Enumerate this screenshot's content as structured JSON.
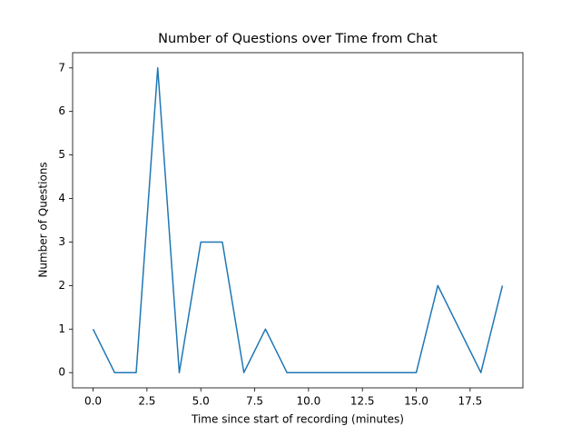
{
  "chart_data": {
    "type": "line",
    "title": "Number of Questions over Time from Chat",
    "x_label": "Time since start of recording (minutes)",
    "y_label": "Number of Questions",
    "x": [
      0,
      1,
      2,
      3,
      4,
      5,
      6,
      7,
      8,
      9,
      10,
      11,
      12,
      13,
      14,
      15,
      16,
      17,
      18,
      19
    ],
    "series": [
      {
        "color": "#1f77b4",
        "values": [
          1,
          0,
          0,
          7,
          0,
          3,
          3,
          0,
          1,
          0,
          0,
          0,
          0,
          0,
          0,
          0,
          2,
          1,
          0,
          2
        ]
      }
    ],
    "xlim": [
      -0.95,
      19.95
    ],
    "xticks": [
      {
        "value": 0,
        "label": "0.0"
      },
      2.5,
      {
        "value": 5,
        "label": "5.0"
      },
      7.5,
      {
        "value": 10,
        "label": "10.0"
      },
      12.5,
      {
        "value": 15,
        "label": "15.0"
      },
      17.5
    ],
    "ylim": [
      -0.35,
      7.35
    ],
    "yticks": [
      0,
      1,
      2,
      3,
      4,
      5,
      6,
      7
    ]
  }
}
